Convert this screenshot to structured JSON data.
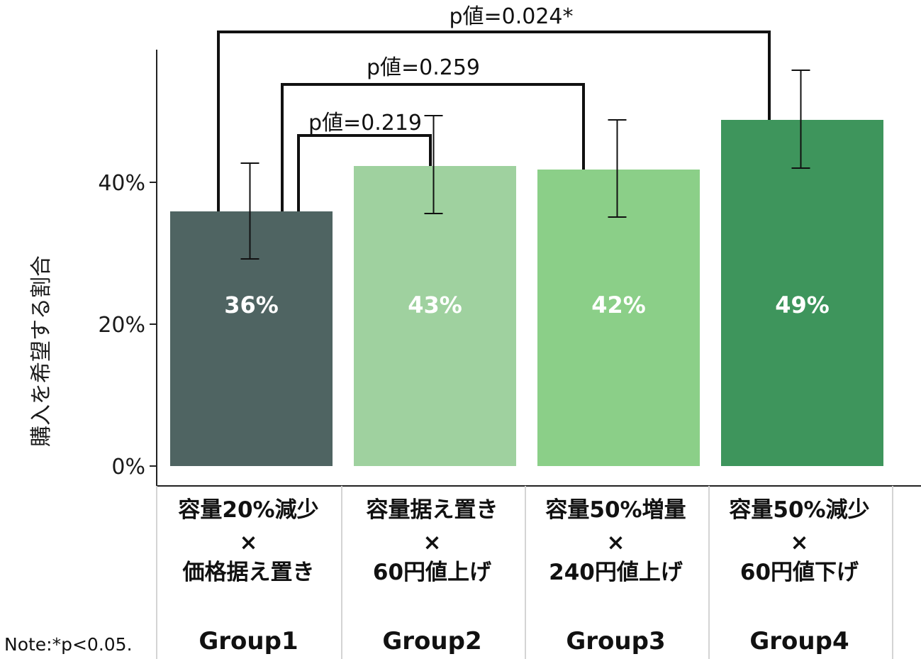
{
  "chart_data": {
    "type": "bar",
    "ylabel": "購入を希望する割合",
    "ylim": [
      0,
      0.6
    ],
    "yticks": [
      0,
      0.2,
      0.4
    ],
    "ytick_labels": [
      "0%",
      "20%",
      "40%"
    ],
    "grid": false,
    "categories": [
      {
        "name_lines": [
          "容量20%減少",
          "×",
          "価格据え置き"
        ],
        "group": "Group1",
        "value": 0.359,
        "label": "36%",
        "ci": [
          0.292,
          0.427
        ],
        "color": "#4f6462"
      },
      {
        "name_lines": [
          "容量据え置き",
          "×",
          "60円値上げ"
        ],
        "group": "Group2",
        "value": 0.423,
        "label": "43%",
        "ci": [
          0.356,
          0.494
        ],
        "color": "#9fd19f"
      },
      {
        "name_lines": [
          "容量50%増量",
          "×",
          "240円値上げ"
        ],
        "group": "Group3",
        "value": 0.418,
        "label": "42%",
        "ci": [
          0.351,
          0.488
        ],
        "color": "#8bcf88"
      },
      {
        "name_lines": [
          "容量50%減少",
          "×",
          "60円値下げ"
        ],
        "group": "Group4",
        "value": 0.488,
        "label": "49%",
        "ci": [
          0.42,
          0.558
        ],
        "color": "#3e955c"
      }
    ],
    "comparisons": [
      {
        "from": 0,
        "to": 1,
        "label": "p値=0.219"
      },
      {
        "from": 0,
        "to": 2,
        "label": "p値=0.259"
      },
      {
        "from": 0,
        "to": 3,
        "label": "p値=0.024*"
      }
    ]
  },
  "note": "Note:*p<0.05."
}
